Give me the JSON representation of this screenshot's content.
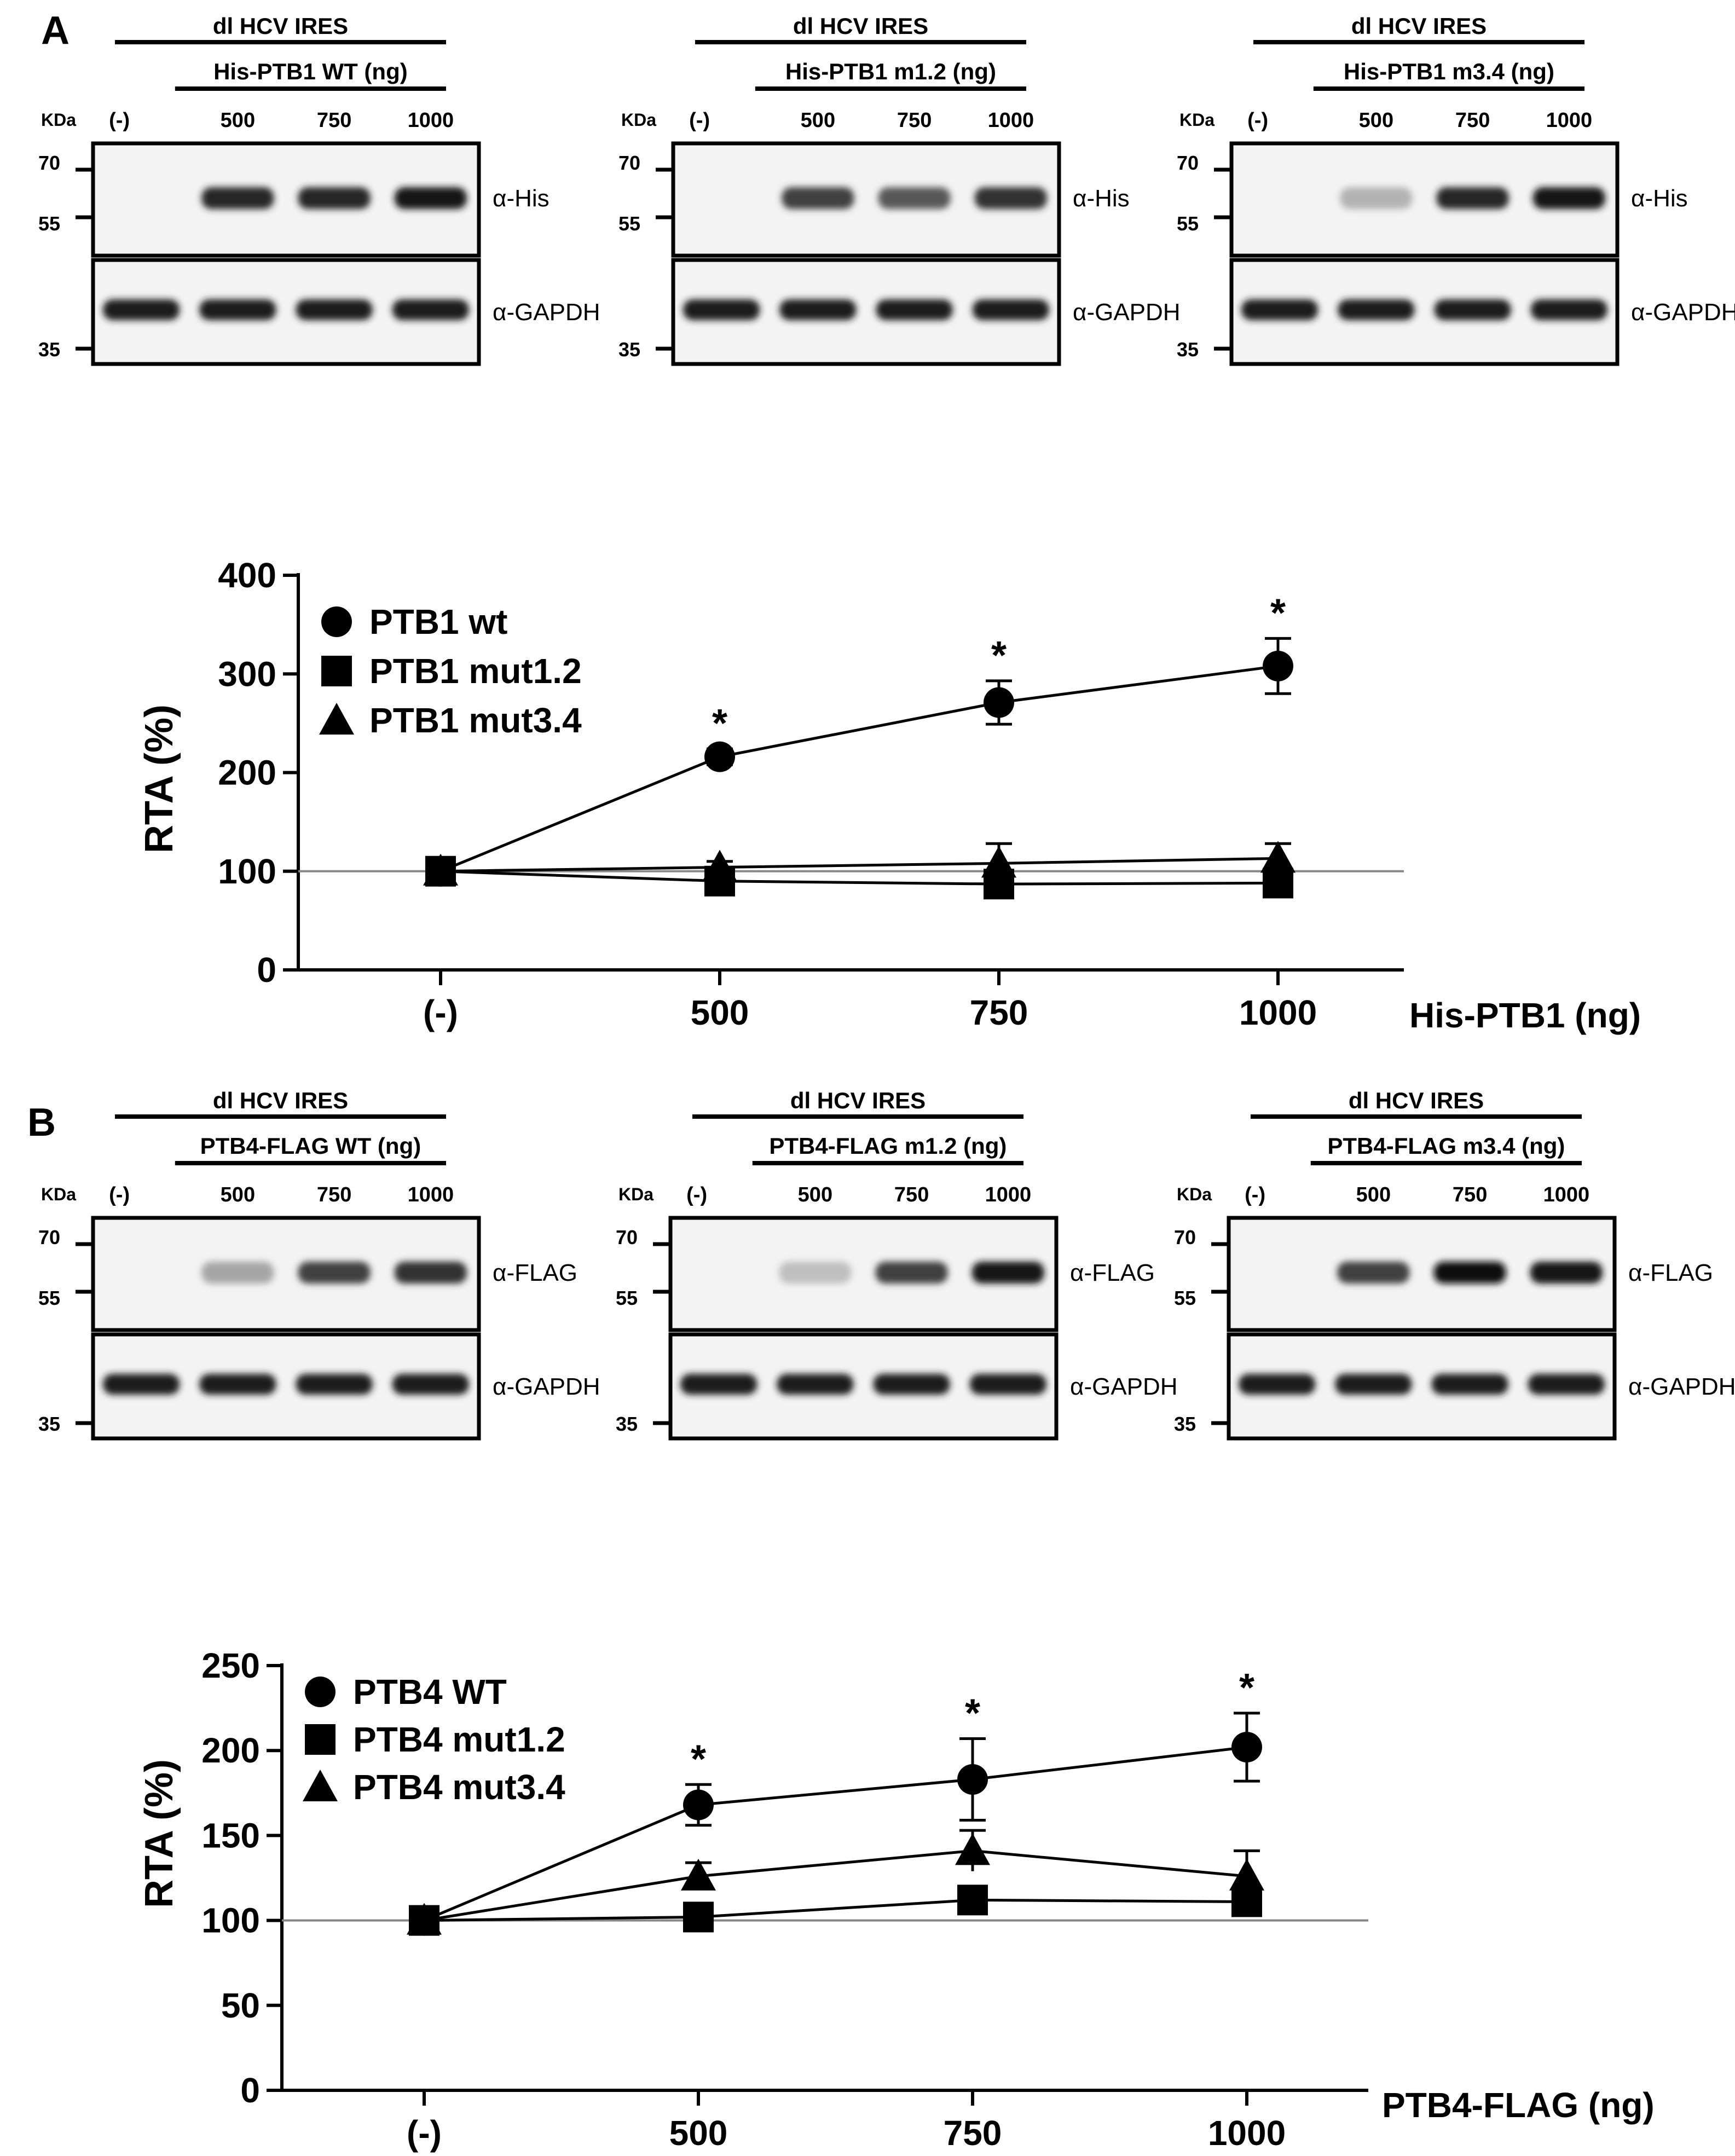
{
  "panels": [
    {
      "letter": "A",
      "blots": [
        {
          "construct": "dl HCV IRES",
          "protein_label": "His-PTB1  WT (ng)",
          "kda": "KDa",
          "lanes": [
            "(-)",
            "500",
            "750",
            "1000"
          ],
          "top_antibody": "α-His",
          "bottom_antibody": "α-GAPDH",
          "mw_top": [
            "70",
            "55"
          ],
          "mw_bottom": [
            "35"
          ],
          "band_intensity": [
            0,
            0.85,
            0.85,
            0.9
          ]
        },
        {
          "construct": "dl HCV IRES",
          "protein_label": "His-PTB1  m1.2 (ng)",
          "kda": "KDa",
          "lanes": [
            "(-)",
            "500",
            "750",
            "1000"
          ],
          "top_antibody": "α-His",
          "bottom_antibody": "α-GAPDH",
          "mw_top": [
            "70",
            "55"
          ],
          "mw_bottom": [
            "35"
          ],
          "band_intensity": [
            0,
            0.75,
            0.65,
            0.8
          ]
        },
        {
          "construct": "dl HCV IRES",
          "protein_label": "His-PTB1  m3.4 (ng)",
          "kda": "KDa",
          "lanes": [
            "(-)",
            "500",
            "750",
            "1000"
          ],
          "top_antibody": "α-His",
          "bottom_antibody": "α-GAPDH",
          "mw_top": [
            "70",
            "55"
          ],
          "mw_bottom": [
            "35"
          ],
          "band_intensity": [
            0,
            0.3,
            0.85,
            0.9
          ]
        }
      ]
    },
    {
      "letter": "B",
      "blots": [
        {
          "construct": "dl HCV IRES",
          "protein_label": "PTB4-FLAG WT (ng)",
          "kda": "KDa",
          "lanes": [
            "(-)",
            "500",
            "750",
            "1000"
          ],
          "top_antibody": "α-FLAG",
          "bottom_antibody": "α-GAPDH",
          "mw_top": [
            "70",
            "55"
          ],
          "mw_bottom": [
            "35"
          ],
          "band_intensity": [
            0,
            0.35,
            0.75,
            0.8
          ]
        },
        {
          "construct": "dl HCV IRES",
          "protein_label": "PTB4-FLAG m1.2 (ng)",
          "kda": "KDa",
          "lanes": [
            "(-)",
            "500",
            "750",
            "1000"
          ],
          "top_antibody": "α-FLAG",
          "bottom_antibody": "α-GAPDH",
          "mw_top": [
            "70",
            "55"
          ],
          "mw_bottom": [
            "35"
          ],
          "band_intensity": [
            0,
            0.25,
            0.75,
            0.9
          ]
        },
        {
          "construct": "dl HCV IRES",
          "protein_label": "PTB4-FLAG m3.4 (ng)",
          "kda": "KDa",
          "lanes": [
            "(-)",
            "500",
            "750",
            "1000"
          ],
          "top_antibody": "α-FLAG",
          "bottom_antibody": "α-GAPDH",
          "mw_top": [
            "70",
            "55"
          ],
          "mw_bottom": [
            "35"
          ],
          "band_intensity": [
            0,
            0.75,
            0.95,
            0.9
          ]
        }
      ]
    }
  ],
  "chart_data": [
    {
      "type": "line",
      "panel": "A",
      "categories": [
        "(-)",
        "500",
        "750",
        "1000"
      ],
      "xlabel": "His-PTB1 (ng)",
      "ylabel": "RTA (%)",
      "ylim": [
        0,
        400
      ],
      "yticks": [
        0,
        100,
        200,
        300,
        400
      ],
      "reference_line": 100,
      "legend_position": "top-left",
      "series": [
        {
          "name": "PTB1 wt",
          "marker": "circle",
          "values": [
            100,
            216,
            271,
            308
          ],
          "errors": [
            0,
            8,
            22,
            28
          ],
          "significant": [
            false,
            true,
            true,
            true
          ]
        },
        {
          "name": "PTB1 mut1.2",
          "marker": "square",
          "values": [
            100,
            90,
            87,
            88
          ],
          "errors": [
            0,
            4,
            5,
            6
          ],
          "significant": [
            false,
            false,
            false,
            false
          ]
        },
        {
          "name": "PTB1 mut3.4",
          "marker": "triangle",
          "values": [
            100,
            104,
            108,
            113
          ],
          "errors": [
            0,
            6,
            20,
            15
          ],
          "significant": [
            false,
            false,
            false,
            false
          ]
        }
      ]
    },
    {
      "type": "line",
      "panel": "B",
      "categories": [
        "(-)",
        "500",
        "750",
        "1000"
      ],
      "xlabel": "PTB4-FLAG (ng)",
      "ylabel": "RTA (%)",
      "ylim": [
        0,
        250
      ],
      "yticks": [
        0,
        50,
        100,
        150,
        200,
        250
      ],
      "reference_line": 100,
      "legend_position": "top-left",
      "series": [
        {
          "name": "PTB4 WT",
          "marker": "circle",
          "values": [
            100,
            168,
            183,
            202
          ],
          "errors": [
            0,
            12,
            24,
            20
          ],
          "significant": [
            false,
            true,
            true,
            true
          ]
        },
        {
          "name": "PTB4 mut1.2",
          "marker": "square",
          "values": [
            100,
            102,
            112,
            111
          ],
          "errors": [
            0,
            4,
            5,
            6
          ],
          "significant": [
            false,
            false,
            false,
            false
          ]
        },
        {
          "name": "PTB4 mut3.4",
          "marker": "triangle",
          "values": [
            100,
            126,
            141,
            126
          ],
          "errors": [
            0,
            8,
            12,
            15
          ],
          "significant": [
            false,
            false,
            false,
            false
          ]
        }
      ]
    }
  ],
  "colors": {
    "ink": "#000000",
    "reference": "#888888",
    "blot_bg": "#f2f2f2"
  }
}
